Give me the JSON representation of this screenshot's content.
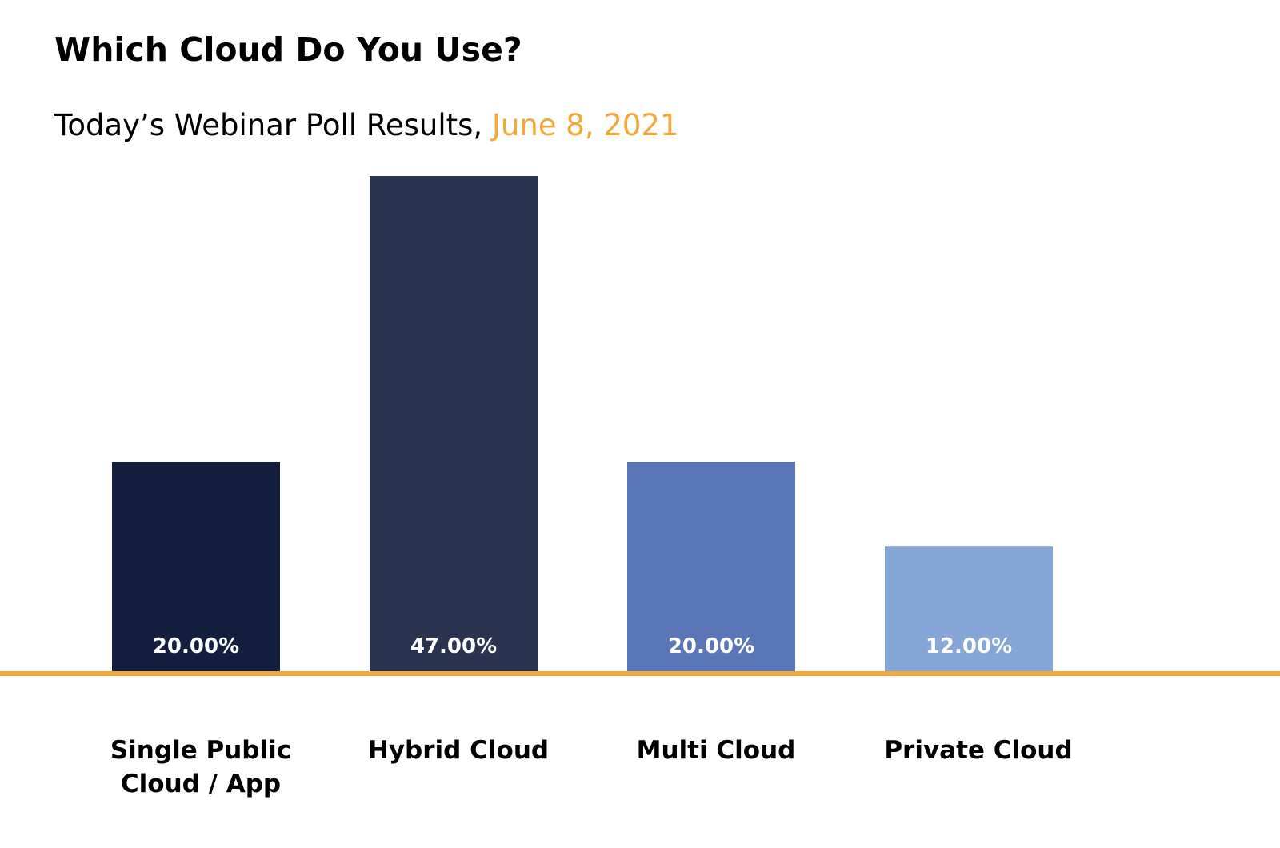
{
  "header": {
    "title": "Which Cloud Do You Use?",
    "subtitle_prefix": "Today’s Webinar Poll Results, ",
    "subtitle_date": "June 8, 2021"
  },
  "colors": {
    "accent": "#f2a93b",
    "bars": [
      "#141f40",
      "#2a3350",
      "#5a75b5",
      "#85a6d6"
    ]
  },
  "chart_data": {
    "type": "bar",
    "title": "Which Cloud Do You Use?",
    "categories": [
      "Single Public Cloud / App",
      "Hybrid Cloud",
      "Multi Cloud",
      "Private Cloud"
    ],
    "category_lines": [
      [
        "Single Public",
        "Cloud / App"
      ],
      [
        "Hybrid Cloud"
      ],
      [
        "Multi Cloud"
      ],
      [
        "Private Cloud"
      ]
    ],
    "values": [
      20,
      47,
      20,
      12
    ],
    "value_labels": [
      "20.00%",
      "47.00%",
      "20.00%",
      "12.00%"
    ],
    "ylim": [
      0,
      47
    ],
    "grid": false,
    "legend": "none"
  }
}
